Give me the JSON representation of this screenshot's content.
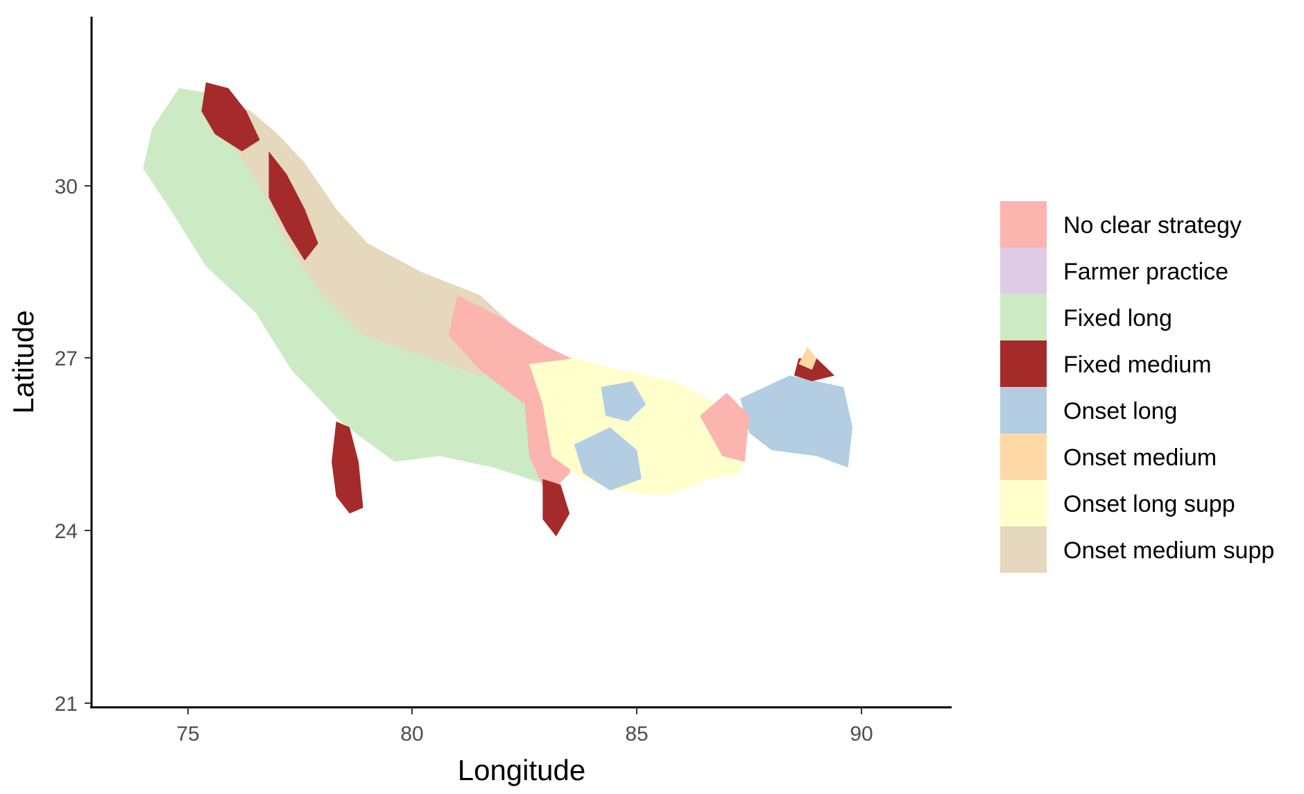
{
  "chart_data": {
    "type": "heatmap",
    "xlabel": "Longitude",
    "ylabel": "Latitude",
    "xlim": [
      73.3,
      92.2
    ],
    "ylim": [
      20.8,
      32.8
    ],
    "x_ticks": [
      75,
      80,
      85,
      90
    ],
    "y_ticks": [
      21,
      24,
      27,
      30
    ],
    "grid": false,
    "legend_position": "right",
    "legend": [
      {
        "label": "No clear strategy",
        "color": "#FBB4AE"
      },
      {
        "label": "Farmer practice",
        "color": "#DECBE4"
      },
      {
        "label": "Fixed long",
        "color": "#CCEBC5"
      },
      {
        "label": "Fixed medium",
        "color": "#A52A2A"
      },
      {
        "label": "Onset long",
        "color": "#B3CDE3"
      },
      {
        "label": "Onset medium",
        "color": "#FED9A6"
      },
      {
        "label": "Onset long supp",
        "color": "#FFFFCC"
      },
      {
        "label": "Onset medium supp",
        "color": "#E5D8BD"
      }
    ],
    "regions": [
      {
        "category": "Fixed long",
        "lonlat": [
          [
            74.8,
            31.7
          ],
          [
            75.6,
            31.6
          ],
          [
            76.5,
            30.7
          ],
          [
            77.2,
            30.1
          ],
          [
            77.8,
            29.3
          ],
          [
            78.6,
            28.1
          ],
          [
            80.0,
            27.4
          ],
          [
            81.5,
            27.0
          ],
          [
            82.8,
            26.5
          ],
          [
            83.5,
            25.6
          ],
          [
            83.0,
            24.8
          ],
          [
            81.8,
            25.1
          ],
          [
            80.6,
            25.3
          ],
          [
            79.6,
            25.2
          ],
          [
            78.9,
            25.6
          ],
          [
            78.4,
            25.9
          ],
          [
            77.3,
            26.8
          ],
          [
            76.5,
            27.8
          ],
          [
            75.4,
            28.6
          ],
          [
            74.6,
            29.6
          ],
          [
            74.0,
            30.3
          ],
          [
            74.2,
            31.0
          ]
        ]
      },
      {
        "category": "Onset medium supp",
        "lonlat": [
          [
            75.6,
            31.6
          ],
          [
            76.4,
            31.3
          ],
          [
            77.0,
            30.9
          ],
          [
            77.6,
            30.4
          ],
          [
            78.3,
            29.6
          ],
          [
            79.0,
            29.0
          ],
          [
            80.2,
            28.5
          ],
          [
            81.5,
            28.1
          ],
          [
            82.2,
            27.6
          ],
          [
            82.6,
            26.8
          ],
          [
            81.5,
            26.7
          ],
          [
            80.0,
            27.1
          ],
          [
            78.9,
            27.4
          ],
          [
            78.0,
            28.1
          ],
          [
            77.2,
            29.0
          ],
          [
            76.6,
            30.0
          ],
          [
            76.0,
            30.7
          ]
        ]
      },
      {
        "category": "No clear strategy",
        "lonlat": [
          [
            81.0,
            28.1
          ],
          [
            82.0,
            27.7
          ],
          [
            83.0,
            27.2
          ],
          [
            83.8,
            26.9
          ],
          [
            83.7,
            26.0
          ],
          [
            83.5,
            25.0
          ],
          [
            83.0,
            24.6
          ],
          [
            82.6,
            25.3
          ],
          [
            82.5,
            26.2
          ],
          [
            81.5,
            26.8
          ],
          [
            80.8,
            27.4
          ]
        ]
      },
      {
        "category": "Onset long supp",
        "lonlat": [
          [
            82.6,
            26.9
          ],
          [
            83.6,
            27.0
          ],
          [
            84.6,
            26.8
          ],
          [
            85.8,
            26.6
          ],
          [
            86.8,
            26.2
          ],
          [
            87.4,
            25.7
          ],
          [
            87.3,
            25.0
          ],
          [
            86.6,
            24.9
          ],
          [
            85.6,
            24.6
          ],
          [
            84.6,
            24.7
          ],
          [
            83.8,
            24.9
          ],
          [
            83.1,
            25.3
          ],
          [
            82.9,
            26.2
          ]
        ]
      },
      {
        "category": "Onset long",
        "lonlat": [
          [
            87.3,
            26.3
          ],
          [
            88.4,
            26.7
          ],
          [
            89.6,
            26.5
          ],
          [
            89.8,
            25.8
          ],
          [
            89.7,
            25.1
          ],
          [
            89.0,
            25.3
          ],
          [
            88.0,
            25.4
          ],
          [
            87.5,
            25.7
          ]
        ]
      },
      {
        "category": "Onset long",
        "lonlat": [
          [
            84.2,
            26.5
          ],
          [
            84.9,
            26.6
          ],
          [
            85.2,
            26.2
          ],
          [
            84.8,
            25.9
          ],
          [
            84.3,
            26.0
          ]
        ]
      },
      {
        "category": "Onset long",
        "lonlat": [
          [
            83.6,
            25.5
          ],
          [
            84.4,
            25.8
          ],
          [
            85.0,
            25.4
          ],
          [
            85.1,
            24.9
          ],
          [
            84.4,
            24.7
          ],
          [
            83.8,
            25.0
          ]
        ]
      },
      {
        "category": "No clear strategy",
        "lonlat": [
          [
            86.4,
            26.0
          ],
          [
            87.0,
            26.4
          ],
          [
            87.5,
            26.0
          ],
          [
            87.4,
            25.2
          ],
          [
            86.9,
            25.3
          ]
        ]
      },
      {
        "category": "Fixed medium",
        "lonlat": [
          [
            75.4,
            31.8
          ],
          [
            75.9,
            31.7
          ],
          [
            76.3,
            31.3
          ],
          [
            76.6,
            30.8
          ],
          [
            76.2,
            30.6
          ],
          [
            75.6,
            30.9
          ],
          [
            75.3,
            31.3
          ]
        ]
      },
      {
        "category": "Fixed medium",
        "lonlat": [
          [
            76.8,
            30.6
          ],
          [
            77.2,
            30.2
          ],
          [
            77.6,
            29.6
          ],
          [
            77.9,
            29.0
          ],
          [
            77.6,
            28.7
          ],
          [
            77.2,
            29.2
          ],
          [
            76.8,
            29.8
          ]
        ]
      },
      {
        "category": "Fixed medium",
        "lonlat": [
          [
            78.3,
            25.9
          ],
          [
            78.6,
            25.8
          ],
          [
            78.8,
            25.2
          ],
          [
            78.9,
            24.4
          ],
          [
            78.6,
            24.3
          ],
          [
            78.3,
            24.6
          ],
          [
            78.2,
            25.2
          ]
        ]
      },
      {
        "category": "Fixed medium",
        "lonlat": [
          [
            82.9,
            24.9
          ],
          [
            83.3,
            24.8
          ],
          [
            83.5,
            24.3
          ],
          [
            83.2,
            23.9
          ],
          [
            82.9,
            24.2
          ]
        ]
      },
      {
        "category": "Fixed medium",
        "lonlat": [
          [
            88.6,
            27.0
          ],
          [
            89.0,
            27.0
          ],
          [
            89.4,
            26.7
          ],
          [
            88.9,
            26.6
          ],
          [
            88.5,
            26.7
          ]
        ]
      },
      {
        "category": "Onset medium",
        "lonlat": [
          [
            88.6,
            26.9
          ],
          [
            88.8,
            27.2
          ],
          [
            89.0,
            27.0
          ],
          [
            88.9,
            26.8
          ]
        ]
      }
    ]
  }
}
